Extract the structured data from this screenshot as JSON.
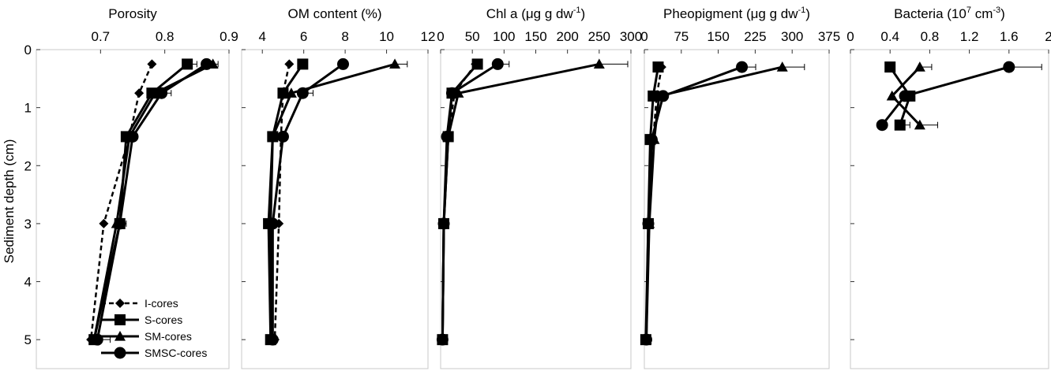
{
  "chart_data": [
    {
      "type": "line",
      "title": "Porosity",
      "title_parts": [
        {
          "text": "Porosity",
          "sup": false
        }
      ],
      "xlim": [
        0.6,
        0.9
      ],
      "xticks": [
        0.7,
        0.8,
        0.9
      ],
      "xtick_labels": [
        "0.7",
        "0.8",
        "0.9"
      ],
      "ylim": [
        0,
        5.5
      ],
      "series": [
        {
          "name": "I-cores",
          "style": "dashed",
          "marker": "diamond",
          "x": [
            0.78,
            0.76,
            0.745,
            0.705,
            0.685
          ],
          "y": [
            0.25,
            0.75,
            1.5,
            3.0,
            5.0
          ],
          "err": [
            0,
            0,
            0,
            0,
            0
          ]
        },
        {
          "name": "S-cores",
          "style": "solid",
          "marker": "square",
          "x": [
            0.835,
            0.78,
            0.74,
            0.73,
            0.69
          ],
          "y": [
            0.25,
            0.75,
            1.5,
            3.0,
            5.0
          ],
          "err": [
            0.015,
            0.01,
            0,
            0.01,
            0
          ]
        },
        {
          "name": "SM-cores",
          "style": "solid",
          "marker": "triangle",
          "x": [
            0.875,
            0.785,
            0.745,
            0.725,
            0.69
          ],
          "y": [
            0.25,
            0.75,
            1.5,
            3.0,
            5.0
          ],
          "err": [
            0.008,
            0,
            0,
            0,
            0
          ]
        },
        {
          "name": "SMSC-cores",
          "style": "solid",
          "marker": "circle",
          "x": [
            0.865,
            0.795,
            0.75,
            0.73,
            0.695
          ],
          "y": [
            0.25,
            0.75,
            1.5,
            3.0,
            5.0
          ],
          "err": [
            0,
            0.015,
            0,
            0,
            0.02
          ]
        }
      ]
    },
    {
      "type": "line",
      "title": "OM content (%)",
      "title_parts": [
        {
          "text": "OM content (%)",
          "sup": false
        }
      ],
      "xlim": [
        3,
        12
      ],
      "xticks": [
        4,
        6,
        8,
        10,
        12
      ],
      "xtick_labels": [
        "4",
        "6",
        "8",
        "10",
        "12"
      ],
      "ylim": [
        0,
        5.5
      ],
      "series": [
        {
          "name": "I-cores",
          "style": "dashed",
          "marker": "diamond",
          "x": [
            5.3,
            5.0,
            4.9,
            4.8,
            4.6
          ],
          "y": [
            0.25,
            0.75,
            1.5,
            3.0,
            5.0
          ],
          "err": [
            0,
            0,
            0,
            0,
            0
          ]
        },
        {
          "name": "S-cores",
          "style": "solid",
          "marker": "square",
          "x": [
            5.95,
            5.0,
            4.5,
            4.3,
            4.4
          ],
          "y": [
            0.25,
            0.75,
            1.5,
            3.0,
            5.0
          ],
          "err": [
            0,
            0,
            0,
            0,
            0
          ]
        },
        {
          "name": "SM-cores",
          "style": "solid",
          "marker": "triangle",
          "x": [
            10.4,
            5.4,
            4.5,
            4.4,
            4.4
          ],
          "y": [
            0.25,
            0.75,
            1.5,
            3.0,
            5.0
          ],
          "err": [
            0.6,
            0,
            0,
            0,
            0
          ]
        },
        {
          "name": "SMSC-cores",
          "style": "solid",
          "marker": "circle",
          "x": [
            7.9,
            5.95,
            5.0,
            4.5,
            4.5
          ],
          "y": [
            0.25,
            0.75,
            1.5,
            3.0,
            5.0
          ],
          "err": [
            0,
            0.5,
            0,
            0,
            0
          ]
        }
      ]
    },
    {
      "type": "line",
      "title": "Chl a (μg g dw-1)",
      "title_parts": [
        {
          "text": "Chl a (μg g dw",
          "sup": false
        },
        {
          "text": "-1",
          "sup": true
        },
        {
          "text": ")",
          "sup": false
        }
      ],
      "xlim": [
        0,
        300
      ],
      "xticks": [
        0,
        50,
        100,
        150,
        200,
        250,
        300
      ],
      "xtick_labels": [
        "0",
        "50",
        "100",
        "150",
        "200",
        "250",
        "300"
      ],
      "ylim": [
        0,
        5.5
      ],
      "series": [
        {
          "name": "I-cores",
          "style": "dashed",
          "marker": "diamond",
          "x": [
            55,
            22,
            12,
            5,
            3
          ],
          "y": [
            0.25,
            0.75,
            1.5,
            3.0,
            5.0
          ],
          "err": [
            0,
            0,
            0,
            0,
            0
          ]
        },
        {
          "name": "S-cores",
          "style": "solid",
          "marker": "square",
          "x": [
            58,
            18,
            12,
            5,
            3
          ],
          "y": [
            0.25,
            0.75,
            1.5,
            3.0,
            5.0
          ],
          "err": [
            0,
            0,
            0,
            0,
            0
          ]
        },
        {
          "name": "SM-cores",
          "style": "solid",
          "marker": "triangle",
          "x": [
            250,
            28,
            12,
            5,
            3
          ],
          "y": [
            0.25,
            0.75,
            1.5,
            3.0,
            5.0
          ],
          "err": [
            45,
            0,
            0,
            0,
            0
          ]
        },
        {
          "name": "SMSC-cores",
          "style": "solid",
          "marker": "circle",
          "x": [
            90,
            18,
            10,
            5,
            3
          ],
          "y": [
            0.25,
            0.75,
            1.5,
            3.0,
            5.0
          ],
          "err": [
            18,
            0,
            0,
            0,
            0
          ]
        }
      ]
    },
    {
      "type": "line",
      "title": "Pheopigment (μg g dw-1)",
      "title_parts": [
        {
          "text": "Pheopigment (μg g dw",
          "sup": false
        },
        {
          "text": "-1",
          "sup": true
        },
        {
          "text": ")",
          "sup": false
        }
      ],
      "xlim": [
        0,
        375
      ],
      "xticks": [
        0,
        75,
        150,
        225,
        300,
        375
      ],
      "xtick_labels": [
        "0",
        "75",
        "150",
        "225",
        "300",
        "375"
      ],
      "ylim": [
        0,
        5.5
      ],
      "series": [
        {
          "name": "I-cores",
          "style": "dashed",
          "marker": "diamond",
          "x": [
            35,
            25,
            18,
            8,
            4
          ],
          "y": [
            0.3,
            0.8,
            1.55,
            3.0,
            5.0
          ],
          "err": [
            0,
            0,
            0,
            0,
            0
          ]
        },
        {
          "name": "S-cores",
          "style": "solid",
          "marker": "square",
          "x": [
            28,
            18,
            12,
            8,
            3
          ],
          "y": [
            0.3,
            0.8,
            1.55,
            3.0,
            5.0
          ],
          "err": [
            0,
            0,
            0,
            0,
            0
          ]
        },
        {
          "name": "SM-cores",
          "style": "solid",
          "marker": "triangle",
          "x": [
            280,
            30,
            20,
            10,
            4
          ],
          "y": [
            0.3,
            0.8,
            1.55,
            3.0,
            5.0
          ],
          "err": [
            45,
            0,
            0,
            0,
            0
          ]
        },
        {
          "name": "SMSC-cores",
          "style": "solid",
          "marker": "circle",
          "x": [
            198,
            38,
            15,
            8,
            4
          ],
          "y": [
            0.3,
            0.8,
            1.55,
            3.0,
            5.0
          ],
          "err": [
            28,
            0,
            0,
            0,
            0
          ]
        }
      ]
    },
    {
      "type": "line",
      "title": "Bacteria (107 cm-3)",
      "title_parts": [
        {
          "text": "Bacteria (10",
          "sup": false
        },
        {
          "text": "7",
          "sup": true
        },
        {
          "text": " cm",
          "sup": false
        },
        {
          "text": "-3",
          "sup": true
        },
        {
          "text": ")",
          "sup": false
        }
      ],
      "xlim": [
        0,
        2
      ],
      "xticks": [
        0,
        0.4,
        0.8,
        1.2,
        1.6,
        2
      ],
      "xtick_labels": [
        "0",
        "0.4",
        "0.8",
        "1.2",
        "1.6",
        "2"
      ],
      "ylim": [
        0,
        5.5
      ],
      "series": [
        {
          "name": "S-cores",
          "style": "solid",
          "marker": "square",
          "x": [
            0.4,
            0.6,
            0.5
          ],
          "y": [
            0.3,
            0.8,
            1.3
          ],
          "err": [
            0,
            0,
            0.1
          ]
        },
        {
          "name": "SM-cores",
          "style": "solid",
          "marker": "triangle",
          "x": [
            0.7,
            0.42,
            0.7
          ],
          "y": [
            0.3,
            0.8,
            1.3
          ],
          "err": [
            0.12,
            0,
            0.18
          ]
        },
        {
          "name": "SMSC-cores",
          "style": "solid",
          "marker": "circle",
          "x": [
            1.6,
            0.55,
            0.32
          ],
          "y": [
            0.3,
            0.8,
            1.3
          ],
          "err": [
            0.33,
            0,
            0
          ]
        }
      ]
    }
  ],
  "yaxis": {
    "label": "Sediment depth (cm)",
    "ticks": [
      0,
      1,
      2,
      3,
      4,
      5
    ],
    "tick_labels": [
      "0",
      "1",
      "2",
      "3",
      "4",
      "5"
    ],
    "ylim": [
      0,
      5.5
    ],
    "inverted": true
  },
  "legend": {
    "placement": "bottom-right of first panel",
    "entries": [
      {
        "name": "I-cores",
        "style": "dashed",
        "marker": "diamond"
      },
      {
        "name": "S-cores",
        "style": "solid",
        "marker": "square"
      },
      {
        "name": "SM-cores",
        "style": "solid",
        "marker": "triangle"
      },
      {
        "name": "SMSC-cores",
        "style": "solid",
        "marker": "circle"
      }
    ]
  },
  "colors": {
    "line": "#000000",
    "frame": "#c8c8c8",
    "background": "#ffffff"
  }
}
